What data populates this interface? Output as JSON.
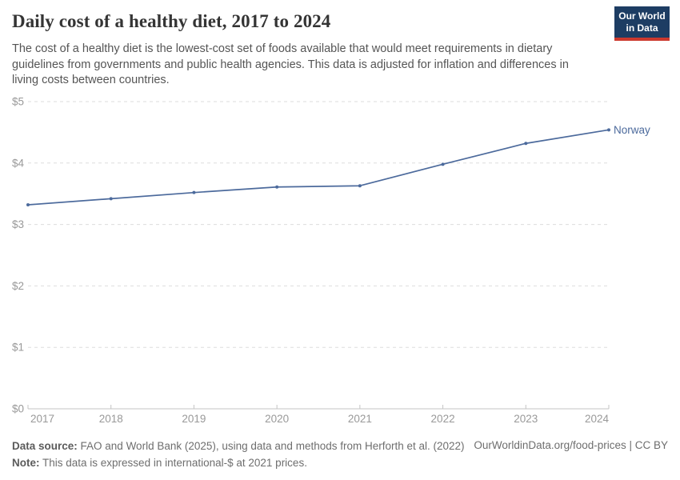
{
  "header": {
    "title": "Daily cost of a healthy diet, 2017 to 2024",
    "subtitle": "The cost of a healthy diet is the lowest-cost set of foods available that would meet requirements in dietary guidelines from governments and public health agencies. This data is adjusted for inflation and differences in living costs between countries.",
    "logo": {
      "line1": "Our World",
      "line2": "in Data",
      "bg_color": "#1d3d63",
      "accent_color": "#cc392e"
    }
  },
  "chart_data": {
    "type": "line",
    "title": "Daily cost of a healthy diet, 2017 to 2024",
    "x": [
      2017,
      2018,
      2019,
      2020,
      2021,
      2022,
      2023,
      2024
    ],
    "series": [
      {
        "name": "Norway",
        "values": [
          3.32,
          3.42,
          3.52,
          3.61,
          3.63,
          3.98,
          4.32,
          4.54
        ],
        "color": "#4c6a9c"
      }
    ],
    "xlabel": "",
    "ylabel": "",
    "ylim": [
      0,
      5
    ],
    "ytick_values": [
      0,
      1,
      2,
      3,
      4,
      5
    ],
    "ytick_labels": [
      "$0",
      "$1",
      "$2",
      "$3",
      "$4",
      "$5"
    ],
    "unit": "international-$ at 2021 prices",
    "grid": "horizontal-dashed",
    "legend_position": "end-of-line-label"
  },
  "footer": {
    "source_label": "Data source:",
    "source_text": " FAO and World Bank (2025), using data and methods from Herforth et al. (2022)",
    "note_label": "Note:",
    "note_text": " This data is expressed in international-$ at 2021 prices.",
    "link": "OurWorldinData.org/food-prices | CC BY"
  },
  "colors": {
    "line": "#4c6a9c",
    "axis_text": "#999999",
    "gridline": "#dddddd",
    "axis_line": "#c4c4c4",
    "title_text": "#343434",
    "subtitle_text": "#555555",
    "footer_text": "#6e6e6e"
  }
}
